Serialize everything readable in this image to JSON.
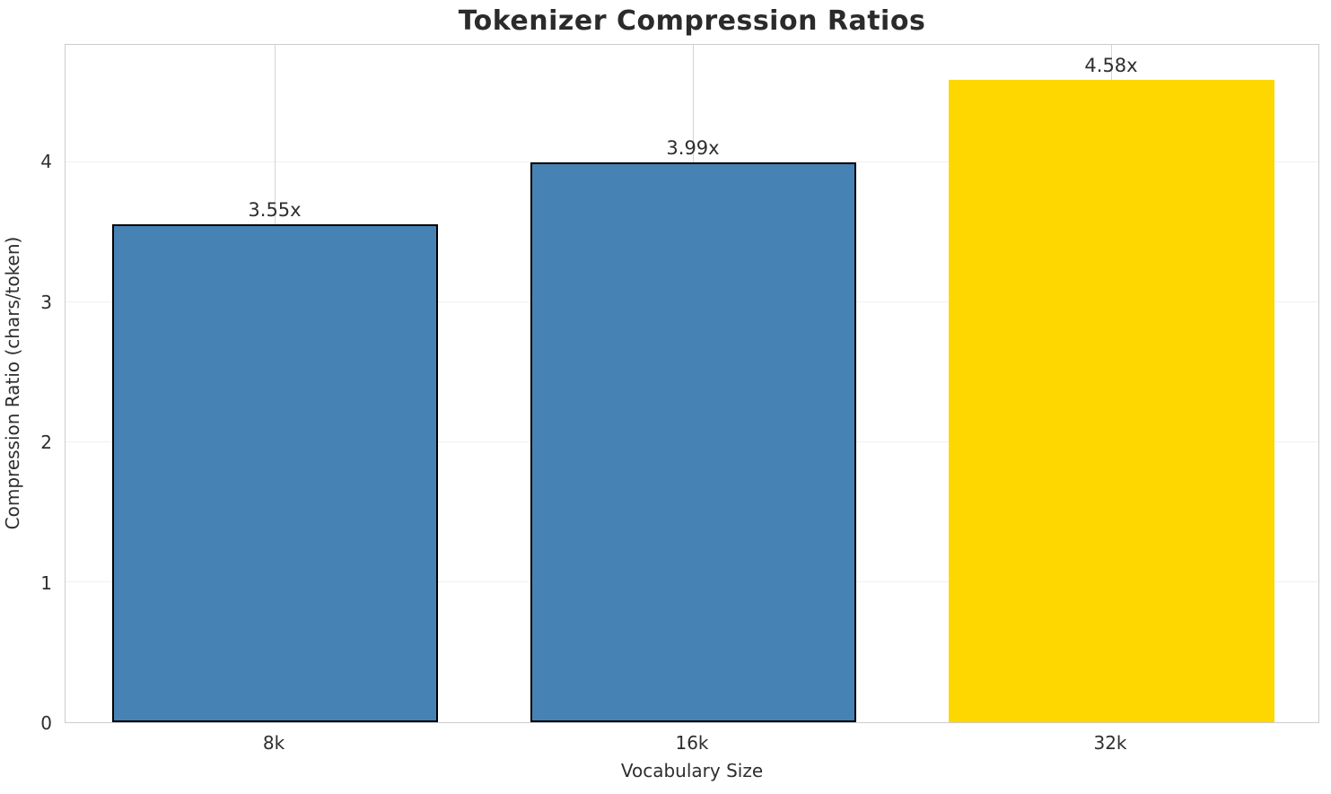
{
  "chart_data": {
    "type": "bar",
    "title": "Tokenizer Compression Ratios",
    "xlabel": "Vocabulary Size",
    "ylabel": "Compression Ratio (chars/token)",
    "categories": [
      "8k",
      "16k",
      "32k"
    ],
    "values": [
      3.55,
      3.99,
      4.58
    ],
    "bar_labels": [
      "3.55x",
      "3.99x",
      "4.58x"
    ],
    "bar_colors": [
      "#4682B4",
      "#4682B4",
      "#FFD700"
    ],
    "bar_edge_colors": [
      "#000000",
      "#000000",
      "none"
    ],
    "yticks": [
      0,
      1,
      2,
      3,
      4
    ],
    "ylim": [
      0,
      4.84
    ],
    "grid": true,
    "grid_horizontal_color": "#f0f0f0",
    "grid_vertical_color": "#d4d4d4",
    "spine_color": "#cccccc",
    "legend": "none"
  }
}
